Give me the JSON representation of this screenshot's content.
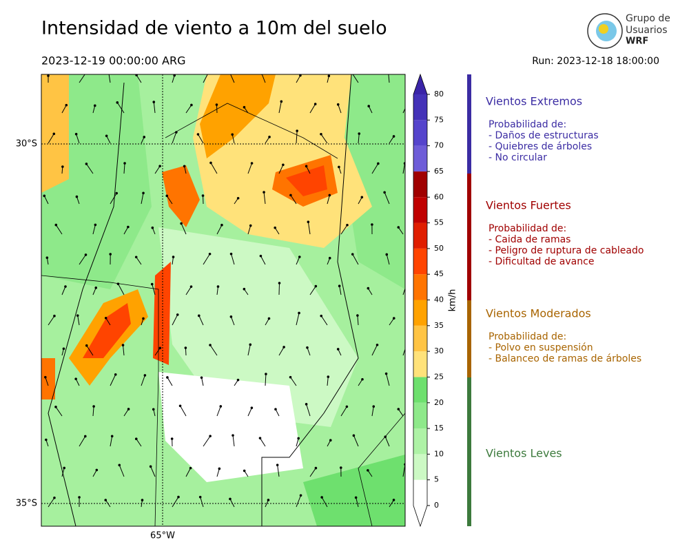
{
  "header": {
    "title": "Intensidad de viento a 10m del suelo",
    "valid_time": "2023-12-19 00:00:00 ARG",
    "run": "Run: 2023-12-18 18:00:00",
    "logo": [
      "Grupo de",
      "Usuarios",
      "WRF"
    ]
  },
  "map": {
    "lat_labels": [
      "30°S",
      "35°S"
    ],
    "lon_labels": [
      "65°W"
    ]
  },
  "colorbar": {
    "label": "km/h",
    "ticks": [
      0,
      5,
      10,
      15,
      20,
      25,
      30,
      35,
      40,
      45,
      50,
      55,
      60,
      65,
      70,
      75,
      80
    ],
    "colors": [
      "#ffffff",
      "#ccf9c4",
      "#aef2a6",
      "#8ee98a",
      "#6ee06e",
      "#ffe27a",
      "#ffc444",
      "#ffa200",
      "#ff7400",
      "#ff4400",
      "#e01e00",
      "#c00000",
      "#a00000",
      "#6e5cd8",
      "#5544cc",
      "#4432b8"
    ],
    "over_color": "#3a24a8"
  },
  "legend": [
    {
      "title": "Vientos Extremos",
      "color": "#3b2ca3",
      "lines": [
        "Probabilidad de:",
        "- Daños de estructuras",
        "- Quiebres de árboles",
        "- No circular"
      ]
    },
    {
      "title": "Vientos Fuertes",
      "color": "#a00000",
      "lines": [
        "Probabilidad de:",
        "- Caida de ramas",
        "- Peligro de ruptura de cableado",
        "- Dificultad de avance"
      ]
    },
    {
      "title": "Vientos Moderados",
      "color": "#a86400",
      "lines": [
        "Probabilidad de:",
        "- Polvo en suspensión",
        "- Balanceo de ramas de árboles"
      ]
    },
    {
      "title": "Vientos Leves",
      "color": "#3c7a3c",
      "lines": []
    }
  ]
}
